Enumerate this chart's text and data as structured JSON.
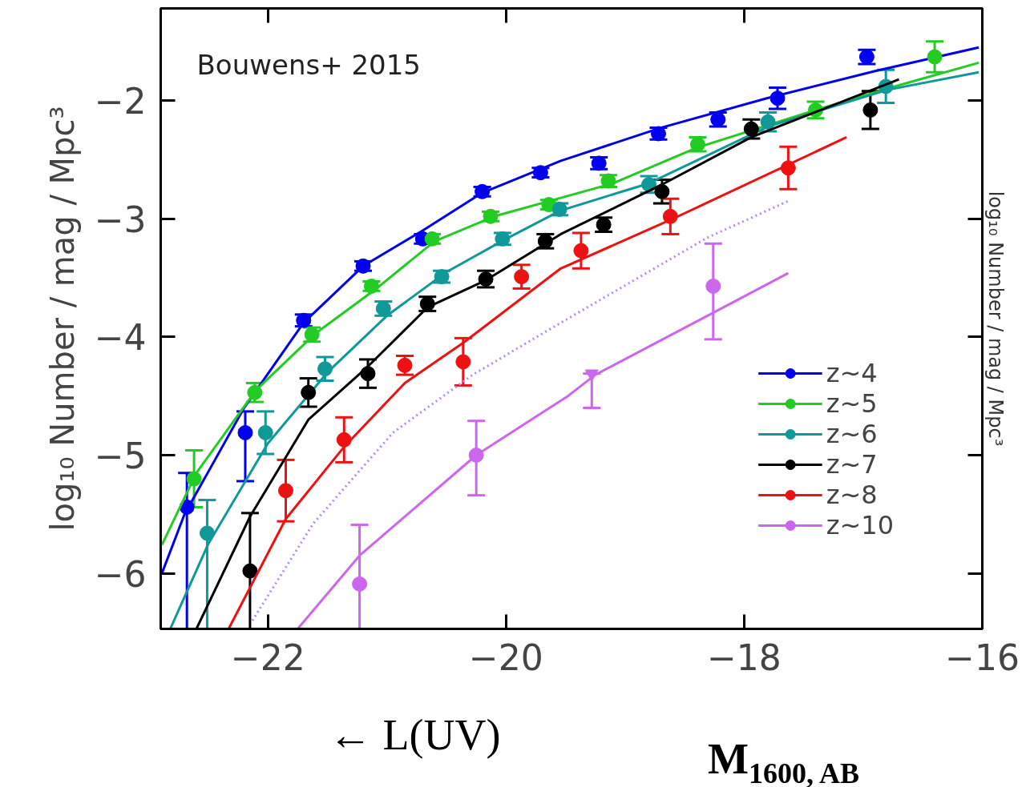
{
  "chart_data": {
    "type": "scatter",
    "xlabel": "M$_{1600, AB}$",
    "ylabel": "log₁₀ Number / mag / Mpc³",
    "y2label": "log₁₀ Number / mag / Mpc³",
    "annotations": [
      "Bouwens+ 2015",
      "← L(UV)"
    ],
    "xlim": [
      -22.9,
      -16
    ],
    "ylim": [
      -6.47,
      -1.22
    ],
    "xticks": [
      -22,
      -20,
      -18,
      -16
    ],
    "yticks": [
      -2,
      -3,
      -4,
      -5,
      -6
    ],
    "grid": false,
    "legend": "bottom right",
    "marker": "circle",
    "series": [
      {
        "name": "z~4",
        "color": "#0000ee",
        "x": [
          -22.68,
          -22.19,
          -21.7,
          -21.2,
          -20.7,
          -20.2,
          -19.71,
          -19.22,
          -18.72,
          -18.22,
          -17.72,
          -16.97
        ],
        "values": [
          -5.44,
          -4.81,
          -3.86,
          -3.4,
          -3.17,
          -2.77,
          -2.61,
          -2.53,
          -2.28,
          -2.16,
          -1.98,
          -1.63
        ],
        "errors": [
          [
            -6.47,
            -5.15
          ],
          [
            -5.22,
            -4.63
          ],
          0.05,
          0.04,
          0.04,
          0.04,
          0.04,
          0.05,
          0.05,
          0.06,
          0.09,
          0.06
        ]
      },
      {
        "type": "line",
        "marker": "none",
        "color": "#0000ee",
        "x": [
          -22.89,
          -22.7,
          -22.2,
          -21.7,
          -21.2,
          -20.7,
          -20.2,
          -19.54,
          -18.7,
          -17.81,
          -16.9,
          -16.03
        ],
        "values": [
          -6.0,
          -5.5,
          -4.6,
          -3.88,
          -3.4,
          -3.1,
          -2.78,
          -2.51,
          -2.23,
          -1.98,
          -1.75,
          -1.55
        ]
      },
      {
        "name": "z~5",
        "color": "#22cc22",
        "x": [
          -22.62,
          -22.11,
          -21.63,
          -21.13,
          -20.62,
          -20.13,
          -19.64,
          -19.14,
          -18.39,
          -17.4,
          -16.4
        ],
        "values": [
          -5.2,
          -4.47,
          -3.98,
          -3.57,
          -3.17,
          -2.98,
          -2.88,
          -2.68,
          -2.37,
          -2.08,
          -1.63
        ],
        "errors": [
          0.24,
          0.08,
          0.06,
          0.04,
          0.04,
          0.04,
          0.04,
          0.05,
          0.06,
          0.07,
          0.13
        ]
      },
      {
        "type": "line",
        "marker": "none",
        "color": "#22cc22",
        "x": [
          -22.89,
          -22.6,
          -22.1,
          -21.6,
          -21.1,
          -20.6,
          -20.1,
          -19.6,
          -19.1,
          -18.4,
          -17.4,
          -16.7,
          -16.03
        ],
        "values": [
          -5.76,
          -5.15,
          -4.45,
          -3.97,
          -3.6,
          -3.19,
          -2.98,
          -2.84,
          -2.7,
          -2.4,
          -2.08,
          -1.87,
          -1.68
        ]
      },
      {
        "name": "z~6",
        "color": "#119999",
        "x": [
          -22.51,
          -22.02,
          -21.52,
          -21.03,
          -20.54,
          -20.03,
          -19.55,
          -18.8,
          -17.8,
          -16.81
        ],
        "values": [
          -5.66,
          -4.81,
          -4.27,
          -3.76,
          -3.49,
          -3.17,
          -2.92,
          -2.71,
          -2.18,
          -1.88
        ],
        "errors": [
          [
            -6.47,
            -5.38
          ],
          0.18,
          0.1,
          0.06,
          0.05,
          0.05,
          0.05,
          0.07,
          0.08,
          0.14
        ]
      },
      {
        "type": "line",
        "marker": "none",
        "color": "#119999",
        "x": [
          -22.82,
          -22.5,
          -22.0,
          -21.5,
          -21.0,
          -20.5,
          -20.0,
          -19.54,
          -18.8,
          -17.8,
          -16.8,
          -16.03
        ],
        "values": [
          -6.47,
          -5.75,
          -4.9,
          -4.3,
          -3.82,
          -3.45,
          -3.17,
          -2.93,
          -2.7,
          -2.22,
          -1.91,
          -1.76
        ]
      },
      {
        "name": "z~7",
        "color": "#000000",
        "x": [
          -22.15,
          -21.66,
          -21.16,
          -20.66,
          -20.17,
          -19.67,
          -19.18,
          -18.69,
          -17.94,
          -16.94
        ],
        "values": [
          -5.98,
          -4.47,
          -4.31,
          -3.72,
          -3.51,
          -3.19,
          -3.05,
          -2.77,
          -2.24,
          -2.08
        ],
        "errors": [
          [
            -6.47,
            -5.49
          ],
          0.12,
          0.12,
          0.06,
          0.07,
          0.06,
          0.06,
          0.1,
          0.08,
          0.16
        ]
      },
      {
        "type": "line",
        "marker": "none",
        "color": "#000000",
        "x": [
          -22.6,
          -22.15,
          -21.66,
          -21.16,
          -20.66,
          -20.17,
          -19.54,
          -18.69,
          -17.94,
          -16.7
        ],
        "values": [
          -6.47,
          -5.52,
          -4.7,
          -4.25,
          -3.75,
          -3.52,
          -3.13,
          -2.71,
          -2.31,
          -1.82
        ]
      },
      {
        "name": "z~8",
        "color": "#ee1111",
        "x": [
          -21.85,
          -21.36,
          -20.85,
          -20.36,
          -19.87,
          -19.37,
          -18.62,
          -17.63
        ],
        "values": [
          -5.3,
          -4.87,
          -4.24,
          -4.21,
          -3.49,
          -3.27,
          -2.98,
          -2.57
        ],
        "errors": [
          0.26,
          0.19,
          0.08,
          0.2,
          0.1,
          0.15,
          0.15,
          0.18
        ]
      },
      {
        "type": "line",
        "marker": "none",
        "color": "#ee1111",
        "x": [
          -22.33,
          -21.85,
          -21.36,
          -20.85,
          -20.36,
          -19.54,
          -18.62,
          -17.14
        ],
        "values": [
          -6.47,
          -5.54,
          -4.93,
          -4.39,
          -4.05,
          -3.42,
          -3.01,
          -2.31
        ]
      },
      {
        "name": "z~10",
        "color": "#cc66ee",
        "x": [
          -21.23,
          -20.25,
          -18.26
        ],
        "values": [
          -6.09,
          -5.0,
          -3.57
        ],
        "errors": [
          [
            -6.47,
            -5.59
          ],
          [
            -5.34,
            -4.71
          ],
          [
            -4.02,
            -3.21
          ]
        ]
      },
      {
        "type": "line",
        "marker": "none",
        "color": "#cc66ee",
        "x": [
          -21.75,
          -21.23,
          -20.25,
          -19.48,
          -19.25,
          -18.25,
          -17.63
        ],
        "values": [
          -6.47,
          -5.85,
          -5.0,
          -4.5,
          -4.32,
          -3.79,
          -3.46
        ]
      },
      {
        "color": "#cc66ee",
        "marker": "triangle",
        "x": [
          -19.28
        ],
        "values": [
          -4.31
        ],
        "errors": [
          [
            -4.6,
            -4.31
          ]
        ]
      },
      {
        "type": "line",
        "marker": "none",
        "color": "#bb88ee",
        "line_style": "dotted",
        "x": [
          -22.13,
          -21.62,
          -20.95,
          -20.28,
          -19.54,
          -18.31,
          -17.63
        ],
        "values": [
          -6.4,
          -5.58,
          -4.81,
          -4.32,
          -3.88,
          -3.16,
          -2.85
        ]
      }
    ]
  }
}
